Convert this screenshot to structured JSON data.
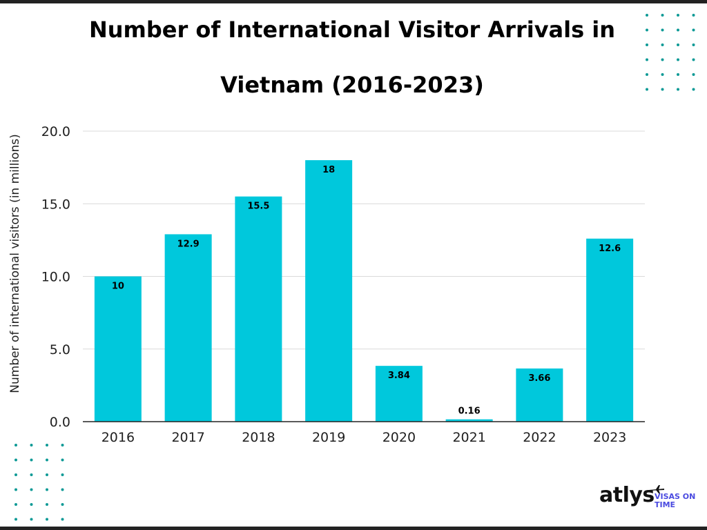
{
  "title_line1": "Number of International Visitor Arrivals in",
  "title_line2": "Vietnam (2016-2023)",
  "brand": {
    "wordmark": "atlys",
    "tagline_line1": "VISAS ON",
    "tagline_line2": "TIME"
  },
  "colors": {
    "bar": "#00C8DC",
    "dots": "#0E9A96",
    "grid": "#d9d9d9",
    "axis": "#222222",
    "brand_tagline": "#4a4ae0"
  },
  "chart_data": {
    "type": "bar",
    "title": "Number of International Visitor Arrivals in Vietnam (2016-2023)",
    "xlabel": "",
    "ylabel": "Number of international visitors (in millions)",
    "categories": [
      "2016",
      "2017",
      "2018",
      "2019",
      "2020",
      "2021",
      "2022",
      "2023"
    ],
    "values": [
      10,
      12.9,
      15.5,
      18,
      3.84,
      0.16,
      3.66,
      12.6
    ],
    "data_labels": [
      "10",
      "12.9",
      "15.5",
      "18",
      "3.84",
      "0.16",
      "3.66",
      "12.6"
    ],
    "ylim": [
      0,
      20
    ],
    "yticks": [
      0,
      5,
      10,
      15,
      20
    ],
    "ytick_labels": [
      "0.0",
      "5.0",
      "10.0",
      "15.0",
      "20.0"
    ],
    "grid": true,
    "legend": "none"
  }
}
